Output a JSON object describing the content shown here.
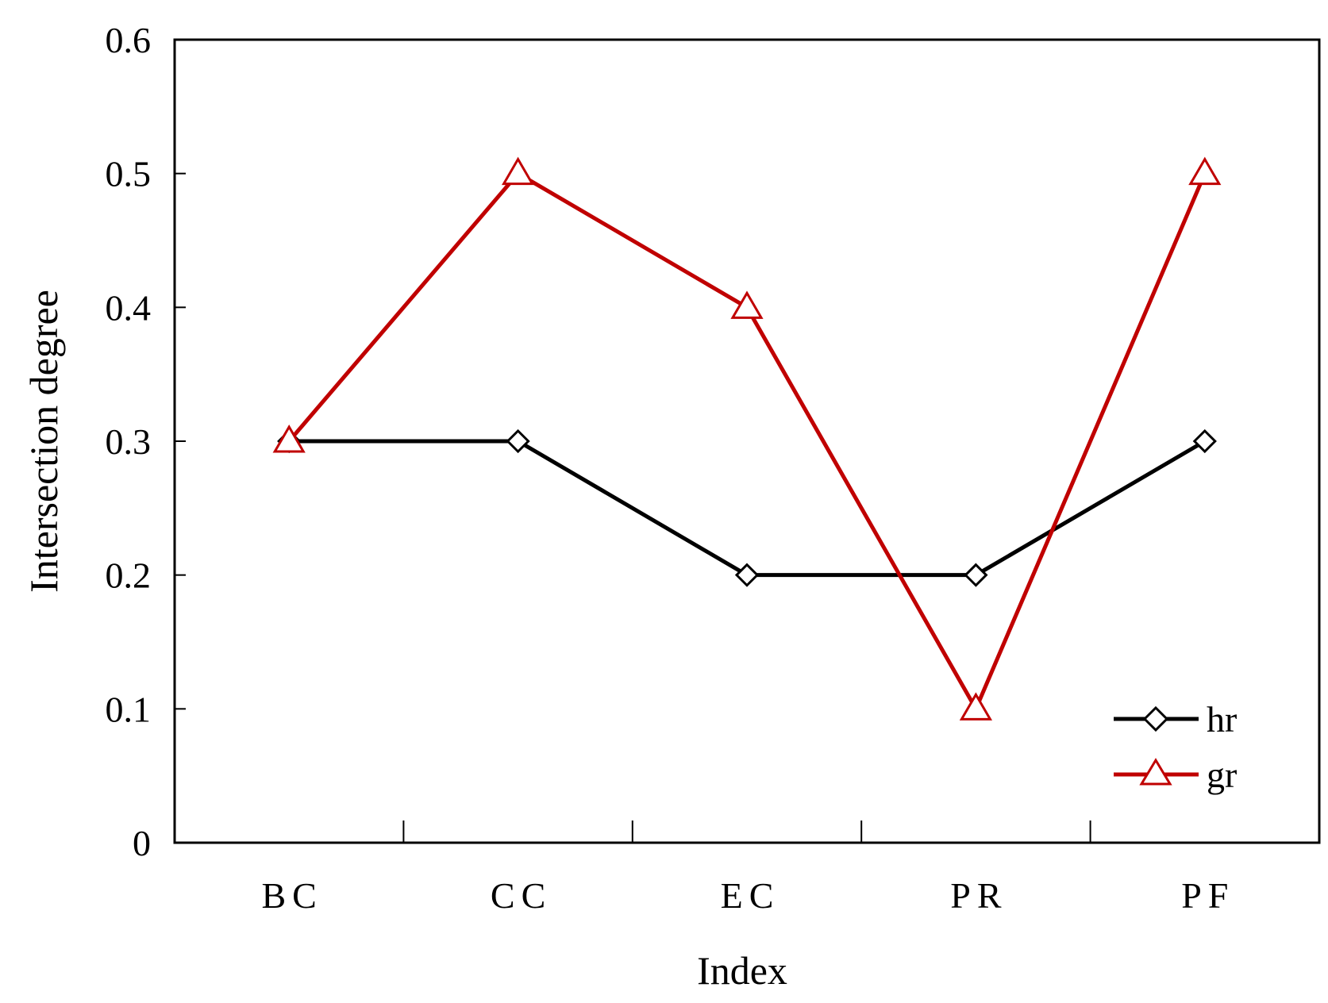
{
  "chart_data": {
    "type": "line",
    "xlabel": "Index",
    "ylabel": "Intersection degree",
    "categories": [
      "BC",
      "CC",
      "EC",
      "PR",
      "PF"
    ],
    "ylim": [
      0,
      0.6
    ],
    "yticks": [
      "0",
      "0.1",
      "0.2",
      "0.3",
      "0.4",
      "0.5",
      "0.6"
    ],
    "grid": false,
    "legend_position": "bottom-right",
    "series": [
      {
        "name": "hr",
        "values": [
          0.3,
          0.3,
          0.2,
          0.2,
          0.3
        ],
        "color": "#000000",
        "marker": "diamond"
      },
      {
        "name": "gr",
        "values": [
          0.3,
          0.5,
          0.4,
          0.1,
          0.5
        ],
        "color": "#c00000",
        "marker": "triangle"
      }
    ]
  }
}
